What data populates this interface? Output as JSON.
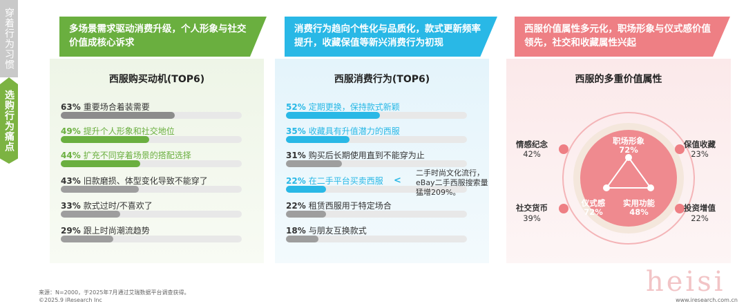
{
  "sidebar": {
    "top": "穿着行为习惯",
    "bottom": "选购行为痛点"
  },
  "panels": [
    {
      "header": "多场景需求驱动消费升级，个人形象与社交价值成核心诉求",
      "title": "西服购买动机(TOP6)",
      "labels": [
        "重要场合着装需要",
        "提升个人形象和社交地位",
        "扩充不同穿着场景的搭配选择",
        "旧款磨损、体型变化导致不能穿了",
        "款式过时/不喜欢了",
        "跟上时尚潮流趋势"
      ],
      "values": [
        63,
        49,
        44,
        43,
        33,
        29
      ],
      "value_labels": [
        "63%",
        "49%",
        "44%",
        "43%",
        "33%",
        "29%"
      ],
      "highlight": [
        false,
        true,
        true,
        false,
        false,
        false
      ],
      "color": "#6aaf3f"
    },
    {
      "header": "消费行为趋向个性化与品质化，款式更新频率提升，收藏保值等新兴消费行为初现",
      "title": "西服消费行为(TOP6)",
      "labels": [
        "定期更换，保持款式新颖",
        "收藏具有升值潜力的西服",
        "购买后长期使用直到不能穿为止",
        "在二手平台买卖西服",
        "租赁西服用于特定场合",
        "与朋友互换款式"
      ],
      "values": [
        52,
        35,
        31,
        22,
        22,
        18
      ],
      "value_labels": [
        "52%",
        "35%",
        "31%",
        "22%",
        "22%",
        "18%"
      ],
      "highlight": [
        true,
        true,
        false,
        true,
        false,
        false
      ],
      "color": "#29b8e6",
      "callout": "二手时尚文化流行，eBay二手西服搜索量猛增209%。"
    },
    {
      "header": "西服价值属性多元化，职场形象与仪式感价值领先，社交和收藏属性兴起",
      "title": "西服的多重价值属性",
      "inner": [
        {
          "name": "职场形象",
          "value": "72%"
        },
        {
          "name": "仪式感",
          "value": "72%"
        },
        {
          "name": "实用功能",
          "value": "48%"
        }
      ],
      "outer": [
        {
          "name": "情感纪念",
          "value": "42%"
        },
        {
          "name": "保值收藏",
          "value": "23%"
        },
        {
          "name": "社交货币",
          "value": "39%"
        },
        {
          "name": "投资增值",
          "value": "22%"
        }
      ]
    }
  ],
  "footer": {
    "source": "来源：N=2000，于2025年7月通过艾瑞数据平台调查获得。",
    "copyright": "©2025.9 iResearch Inc",
    "website": "www.iresearch.com.cn",
    "watermark": "heisi"
  }
}
